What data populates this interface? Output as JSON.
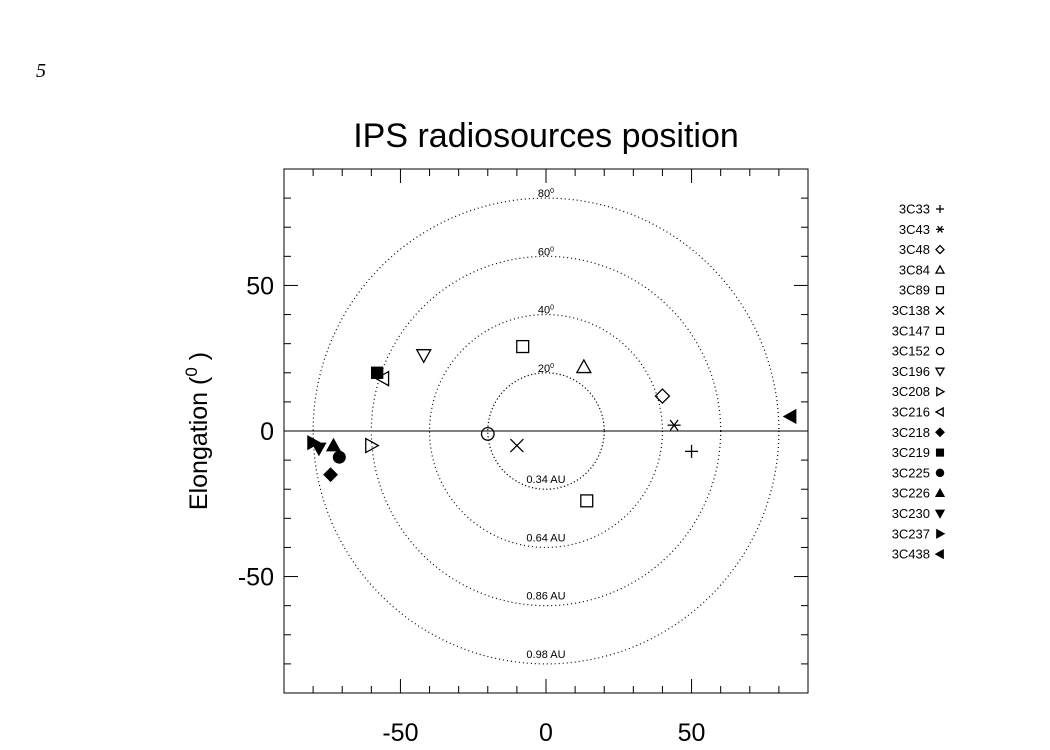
{
  "page_number": "5",
  "chart_data": {
    "type": "scatter",
    "title": "IPS radiosources position",
    "xlabel": "",
    "ylabel": "Elongation (",
    "ylabel_superscript": "0",
    "ylabel_suffix": " )",
    "xlim": [
      -90,
      90
    ],
    "ylim": [
      -90,
      90
    ],
    "xticks": [
      -50,
      0,
      50
    ],
    "yticks": [
      -50,
      0,
      50
    ],
    "grid": false,
    "legend_position": "right",
    "circles": [
      {
        "elongation_label": "20",
        "radius": 20,
        "distance_label": "0.34 AU"
      },
      {
        "elongation_label": "40",
        "radius": 40,
        "distance_label": "0.64 AU"
      },
      {
        "elongation_label": "60",
        "radius": 60,
        "distance_label": "0.86 AU"
      },
      {
        "elongation_label": "80",
        "radius": 80,
        "distance_label": "0.98 AU"
      }
    ],
    "series": [
      {
        "name": "3C33",
        "symbol": "plus",
        "points": [
          [
            50,
            -7
          ]
        ]
      },
      {
        "name": "3C43",
        "symbol": "asterisk",
        "points": [
          [
            44,
            2
          ]
        ]
      },
      {
        "name": "3C48",
        "symbol": "diamond-open",
        "points": [
          [
            40,
            12
          ]
        ]
      },
      {
        "name": "3C84",
        "symbol": "triangle-open",
        "points": [
          [
            13,
            22
          ]
        ]
      },
      {
        "name": "3C89",
        "symbol": "square-open",
        "points": [
          [
            -8,
            29
          ]
        ]
      },
      {
        "name": "3C138",
        "symbol": "cross",
        "points": [
          [
            -10,
            -5
          ]
        ]
      },
      {
        "name": "3C147",
        "symbol": "square-open",
        "points": [
          [
            14,
            -24
          ]
        ]
      },
      {
        "name": "3C152",
        "symbol": "circle-open",
        "points": [
          [
            -20,
            -1
          ]
        ]
      },
      {
        "name": "3C196",
        "symbol": "triangle-down-open",
        "points": [
          [
            -42,
            26
          ]
        ]
      },
      {
        "name": "3C208",
        "symbol": "triangle-right-open",
        "points": [
          [
            -60,
            -5
          ]
        ]
      },
      {
        "name": "3C216",
        "symbol": "triangle-left-open",
        "points": [
          [
            -56,
            18
          ]
        ]
      },
      {
        "name": "3C218",
        "symbol": "diamond-filled",
        "points": [
          [
            -74,
            -15
          ]
        ]
      },
      {
        "name": "3C219",
        "symbol": "square-filled",
        "points": [
          [
            -58,
            20
          ]
        ]
      },
      {
        "name": "3C225",
        "symbol": "circle-filled",
        "points": [
          [
            -71,
            -9
          ]
        ]
      },
      {
        "name": "3C226",
        "symbol": "triangle-filled",
        "points": [
          [
            -73,
            -5
          ]
        ]
      },
      {
        "name": "3C230",
        "symbol": "triangle-down-filled",
        "points": [
          [
            -78,
            -6
          ]
        ]
      },
      {
        "name": "3C237",
        "symbol": "triangle-right-filled",
        "points": [
          [
            -80,
            -4
          ]
        ]
      },
      {
        "name": "3C438",
        "symbol": "triangle-left-filled",
        "points": [
          [
            84,
            5
          ]
        ]
      }
    ]
  }
}
